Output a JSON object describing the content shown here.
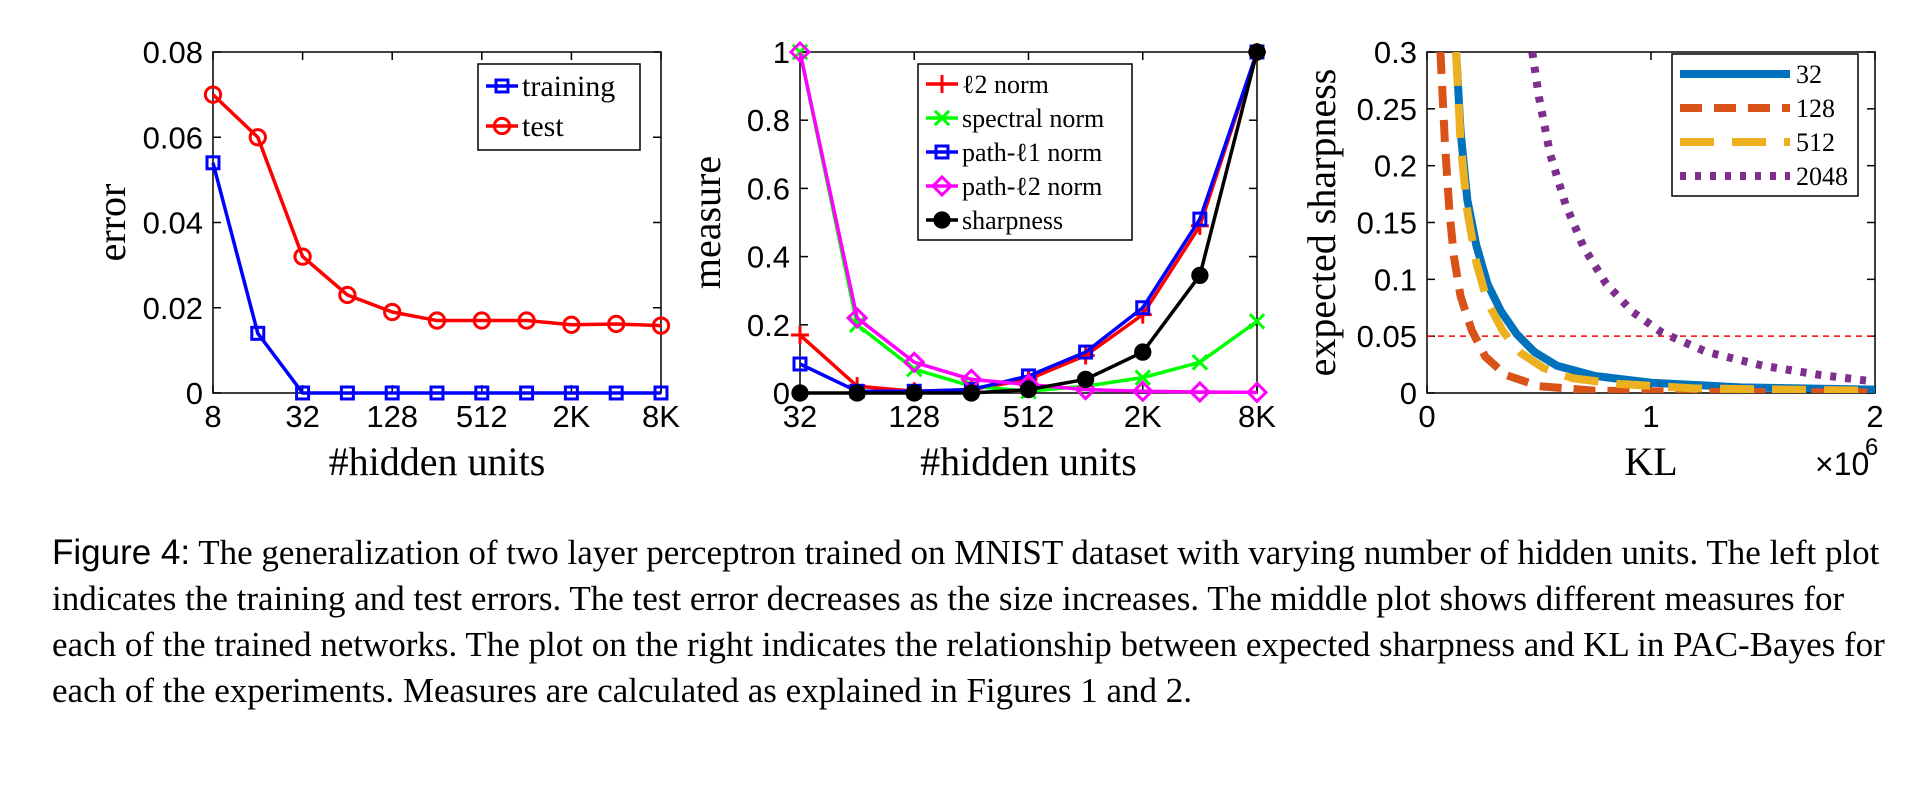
{
  "caption": {
    "label": "Figure 4:",
    "text": "The generalization of two layer perceptron trained on MNIST dataset with varying number of hidden units. The left plot indicates the training and test errors. The test error decreases as the size increases. The middle plot shows different measures for each of the trained networks. The plot on the right indicates the relationship between expected sharpness and KL in PAC-Bayes for each of the experiments. Measures are calculated as explained in Figures 1 and 2."
  },
  "chart_data": [
    {
      "type": "line",
      "xlabel": "#hidden units",
      "ylabel": "error",
      "x_scale": "log2",
      "x": [
        8,
        16,
        32,
        64,
        128,
        256,
        512,
        1024,
        2048,
        4096,
        8192
      ],
      "xticks": [
        8,
        32,
        128,
        512,
        2048,
        8192
      ],
      "xtick_labels": [
        "8",
        "32",
        "128",
        "512",
        "2K",
        "8K"
      ],
      "xlim": [
        8,
        8192
      ],
      "ylim": [
        0,
        0.08
      ],
      "yticks": [
        0,
        0.02,
        0.04,
        0.06,
        0.08
      ],
      "ytick_labels": [
        "0",
        "0.02",
        "0.04",
        "0.06",
        "0.08"
      ],
      "legend": "top-right",
      "series": [
        {
          "name": "training",
          "color": "#0000ff",
          "marker": "square",
          "values": [
            0.054,
            0.014,
            0,
            0,
            0,
            0,
            0,
            0,
            0,
            0,
            0
          ]
        },
        {
          "name": "test",
          "color": "#ff0000",
          "marker": "circle",
          "values": [
            0.07,
            0.06,
            0.032,
            0.023,
            0.019,
            0.017,
            0.017,
            0.017,
            0.016,
            0.0162,
            0.0158
          ]
        }
      ]
    },
    {
      "type": "line",
      "xlabel": "#hidden units",
      "ylabel": "measure",
      "x_scale": "log2",
      "x": [
        32,
        64,
        128,
        256,
        512,
        1024,
        2048,
        4096,
        8192
      ],
      "xticks": [
        32,
        128,
        512,
        2048,
        8192
      ],
      "xtick_labels": [
        "32",
        "128",
        "512",
        "2K",
        "8K"
      ],
      "xlim": [
        32,
        8192
      ],
      "ylim": [
        0,
        1
      ],
      "yticks": [
        0,
        0.2,
        0.4,
        0.6,
        0.8,
        1
      ],
      "ytick_labels": [
        "0",
        "0.2",
        "0.4",
        "0.6",
        "0.8",
        "1"
      ],
      "legend": "top-center",
      "series": [
        {
          "name": "ℓ2 norm",
          "color": "#ff0000",
          "marker": "plus",
          "values": [
            0.17,
            0.02,
            0.005,
            0.01,
            0.04,
            0.11,
            0.23,
            0.49,
            1.0
          ]
        },
        {
          "name": "spectral norm",
          "color": "#00ff00",
          "marker": "x",
          "values": [
            1.0,
            0.2,
            0.07,
            0.02,
            0.005,
            0.02,
            0.045,
            0.09,
            0.21
          ]
        },
        {
          "name": "path-ℓ1 norm",
          "color": "#0000ff",
          "marker": "square",
          "values": [
            0.085,
            0.005,
            0.005,
            0.01,
            0.05,
            0.12,
            0.25,
            0.51,
            1.0
          ]
        },
        {
          "name": "path-ℓ2 norm",
          "color": "#ff00ff",
          "marker": "diamond",
          "values": [
            1.0,
            0.22,
            0.09,
            0.04,
            0.025,
            0.01,
            0.005,
            0.003,
            0.002
          ]
        },
        {
          "name": "sharpness",
          "color": "#000000",
          "marker": "filled-circle",
          "values": [
            0,
            0,
            0,
            0,
            0.01,
            0.04,
            0.12,
            0.345,
            1.0
          ]
        }
      ]
    },
    {
      "type": "line",
      "xlabel": "KL",
      "ylabel": "expected sharpness",
      "x_multiplier": "×10",
      "x_exponent": "6",
      "xlim": [
        0,
        2
      ],
      "ylim": [
        0,
        0.3
      ],
      "xticks": [
        0,
        1,
        2
      ],
      "xtick_labels": [
        "0",
        "1",
        "2"
      ],
      "yticks": [
        0,
        0.05,
        0.1,
        0.15,
        0.2,
        0.25,
        0.3
      ],
      "ytick_labels": [
        "0",
        "0.05",
        "0.1",
        "0.15",
        "0.2",
        "0.25",
        "0.3"
      ],
      "reference_line": {
        "y": 0.05,
        "color": "#ff0000",
        "style": "dashed"
      },
      "legend": "top-right",
      "series": [
        {
          "name": "32",
          "color": "#0072bd",
          "style": "solid",
          "x": [
            0.13,
            0.15,
            0.18,
            0.22,
            0.27,
            0.33,
            0.4,
            0.48,
            0.58,
            0.75,
            1.0,
            1.4,
            2.0
          ],
          "values": [
            0.3,
            0.23,
            0.17,
            0.13,
            0.096,
            0.072,
            0.052,
            0.036,
            0.024,
            0.015,
            0.009,
            0.005,
            0.003
          ]
        },
        {
          "name": "128",
          "color": "#d95319",
          "style": "dashed",
          "x": [
            0.06,
            0.08,
            0.1,
            0.12,
            0.15,
            0.2,
            0.26,
            0.35,
            0.5,
            0.75,
            1.2,
            2.0
          ],
          "values": [
            0.3,
            0.22,
            0.16,
            0.12,
            0.085,
            0.055,
            0.032,
            0.016,
            0.006,
            0.002,
            0.001,
            0.0005
          ]
        },
        {
          "name": "512",
          "color": "#edb120",
          "style": "long-dashed",
          "x": [
            0.13,
            0.15,
            0.18,
            0.22,
            0.27,
            0.34,
            0.42,
            0.52,
            0.65,
            0.85,
            1.2,
            2.0
          ],
          "values": [
            0.3,
            0.22,
            0.16,
            0.115,
            0.08,
            0.054,
            0.035,
            0.022,
            0.013,
            0.008,
            0.004,
            0.002
          ]
        },
        {
          "name": "2048",
          "color": "#7e2f8e",
          "style": "dotted",
          "x": [
            0.47,
            0.5,
            0.55,
            0.62,
            0.7,
            0.8,
            0.92,
            1.05,
            1.25,
            1.5,
            1.75,
            2.0
          ],
          "values": [
            0.3,
            0.26,
            0.21,
            0.165,
            0.128,
            0.096,
            0.071,
            0.053,
            0.036,
            0.024,
            0.016,
            0.01
          ]
        }
      ]
    }
  ]
}
